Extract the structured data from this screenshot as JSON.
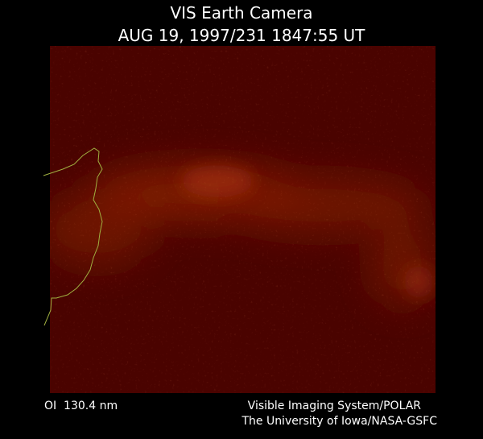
{
  "header": {
    "title": "VIS Earth Camera",
    "subtitle": "AUG 19, 1997/231 1847:55 UT"
  },
  "footer": {
    "left": "OI  130.4 nm",
    "right": [
      "Visible Imaging System/POLAR",
      "The University of Iowa/NASA-GSFC"
    ]
  }
}
